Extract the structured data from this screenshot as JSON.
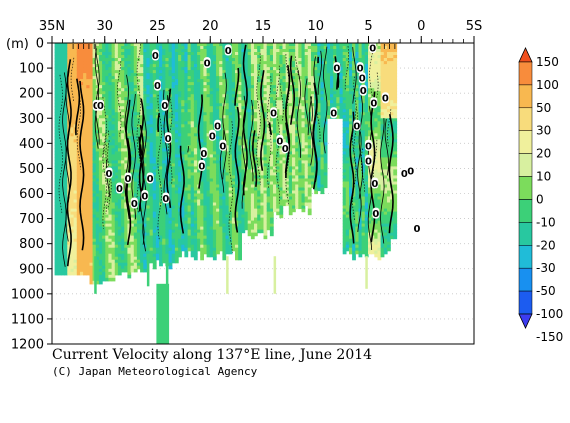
{
  "chart_data": {
    "type": "heatmap",
    "title": "Current Velocity along 137°E line, June 2014",
    "credit": "(C) Japan Meteorological Agency",
    "ylabel": "(m)",
    "x_ticks": [
      "35N",
      "30",
      "25",
      "20",
      "15",
      "10",
      "5",
      "0",
      "5S"
    ],
    "x_tick_values": [
      35,
      30,
      25,
      20,
      15,
      10,
      5,
      0,
      -5
    ],
    "xlim": [
      35,
      -5
    ],
    "y_ticks": [
      "0",
      "100",
      "200",
      "300",
      "400",
      "500",
      "600",
      "700",
      "800",
      "900",
      "1000",
      "1100",
      "1200"
    ],
    "y_tick_values": [
      0,
      100,
      200,
      300,
      400,
      500,
      600,
      700,
      800,
      900,
      1000,
      1100,
      1200
    ],
    "ylim": [
      0,
      1200
    ],
    "colorbar": {
      "labels": [
        "150",
        "100",
        "50",
        "30",
        "20",
        "10",
        "0",
        "-10",
        "-20",
        "-30",
        "-50",
        "-100",
        "-150"
      ],
      "colors": [
        "#f0501e",
        "#f88c3c",
        "#f8b850",
        "#f8dc7c",
        "#f0f09c",
        "#d8f0a0",
        "#7cdc5c",
        "#3cd078",
        "#28c8a0",
        "#20bcd8",
        "#1890f0",
        "#1c5cf0",
        "#3c3cf0"
      ]
    },
    "contour_labels": [
      "0"
    ],
    "zero_contour_label_depths": [
      {
        "lat": 30.8,
        "depth": 250
      },
      {
        "lat": 30.4,
        "depth": 250
      },
      {
        "lat": 29.6,
        "depth": 520
      },
      {
        "lat": 28.6,
        "depth": 580
      },
      {
        "lat": 27.8,
        "depth": 540
      },
      {
        "lat": 27.2,
        "depth": 640
      },
      {
        "lat": 26.2,
        "depth": 610
      },
      {
        "lat": 25.7,
        "depth": 540
      },
      {
        "lat": 25.2,
        "depth": 50
      },
      {
        "lat": 25.0,
        "depth": 170
      },
      {
        "lat": 24.3,
        "depth": 250
      },
      {
        "lat": 24.2,
        "depth": 620
      },
      {
        "lat": 24.0,
        "depth": 380
      },
      {
        "lat": 20.8,
        "depth": 490
      },
      {
        "lat": 20.6,
        "depth": 440
      },
      {
        "lat": 20.3,
        "depth": 80
      },
      {
        "lat": 19.8,
        "depth": 370
      },
      {
        "lat": 19.3,
        "depth": 330
      },
      {
        "lat": 18.8,
        "depth": 410
      },
      {
        "lat": 18.3,
        "depth": 30
      },
      {
        "lat": 14.0,
        "depth": 280
      },
      {
        "lat": 13.4,
        "depth": 390
      },
      {
        "lat": 12.9,
        "depth": 420
      },
      {
        "lat": 8.3,
        "depth": 280
      },
      {
        "lat": 8.0,
        "depth": 100
      },
      {
        "lat": 6.1,
        "depth": 330
      },
      {
        "lat": 5.8,
        "depth": 100
      },
      {
        "lat": 5.6,
        "depth": 140
      },
      {
        "lat": 5.5,
        "depth": 190
      },
      {
        "lat": 5.0,
        "depth": 410
      },
      {
        "lat": 5.0,
        "depth": 470
      },
      {
        "lat": 4.6,
        "depth": 20
      },
      {
        "lat": 4.5,
        "depth": 240
      },
      {
        "lat": 4.4,
        "depth": 560
      },
      {
        "lat": 4.3,
        "depth": 680
      },
      {
        "lat": 3.4,
        "depth": 220
      },
      {
        "lat": 1.6,
        "depth": 520
      },
      {
        "lat": 1.0,
        "depth": 510
      },
      {
        "lat": 0.4,
        "depth": 740
      }
    ]
  }
}
